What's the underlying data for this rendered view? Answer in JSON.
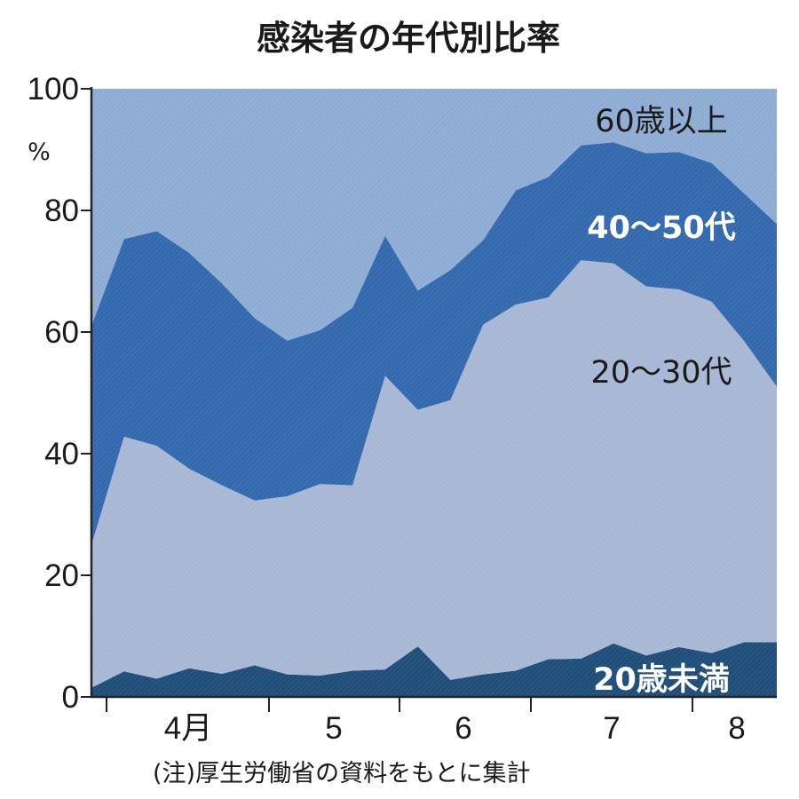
{
  "chart_data": {
    "type": "area",
    "stacked": true,
    "title": "感染者の年代別比率",
    "y_unit": "%",
    "ylim": [
      0,
      100
    ],
    "y_ticks": [
      0,
      20,
      40,
      60,
      80,
      100
    ],
    "x_ticks": [
      "4月",
      "5",
      "6",
      "7",
      "8"
    ],
    "x": [
      0,
      1,
      2,
      3,
      4,
      5,
      6,
      7,
      8,
      9,
      10,
      11,
      12,
      13,
      14,
      15,
      16,
      17,
      18,
      19,
      20,
      21
    ],
    "series": [
      {
        "name": "20歳未満",
        "color": "#1d4d78",
        "label_color": "#ffffff",
        "cumulative": [
          1.5,
          4.2,
          3.0,
          4.7,
          3.8,
          5.2,
          3.7,
          3.5,
          4.3,
          4.5,
          8.3,
          2.8,
          3.7,
          4.3,
          6.2,
          6.3,
          8.8,
          6.8,
          8.2,
          7.2,
          9.0,
          9.0
        ]
      },
      {
        "name": "20〜30代",
        "color": "#a7b7d4",
        "label_color": "#1a1a1a",
        "cumulative": [
          25.0,
          42.8,
          41.3,
          37.5,
          34.8,
          32.3,
          33.0,
          35.0,
          34.8,
          52.8,
          47.2,
          48.8,
          61.2,
          64.5,
          65.7,
          71.8,
          71.3,
          67.5,
          67.0,
          65.0,
          58.5,
          51.0
        ]
      },
      {
        "name": "40〜50代",
        "color": "#3268ad",
        "label_color": "#ffffff",
        "cumulative": [
          61.0,
          75.3,
          76.6,
          73.0,
          68.0,
          62.3,
          58.6,
          60.3,
          64.0,
          75.8,
          66.8,
          70.2,
          75.1,
          83.3,
          85.5,
          90.7,
          91.2,
          89.4,
          89.6,
          87.8,
          82.8,
          77.8
        ]
      },
      {
        "name": "60歳以上",
        "color": "#8eacd3",
        "label_color": "#1a1a1a",
        "cumulative": [
          100,
          100,
          100,
          100,
          100,
          100,
          100,
          100,
          100,
          100,
          100,
          100,
          100,
          100,
          100,
          100,
          100,
          100,
          100,
          100,
          100,
          100
        ]
      }
    ],
    "note": "(注)厚生労働省の資料をもとに集計"
  }
}
